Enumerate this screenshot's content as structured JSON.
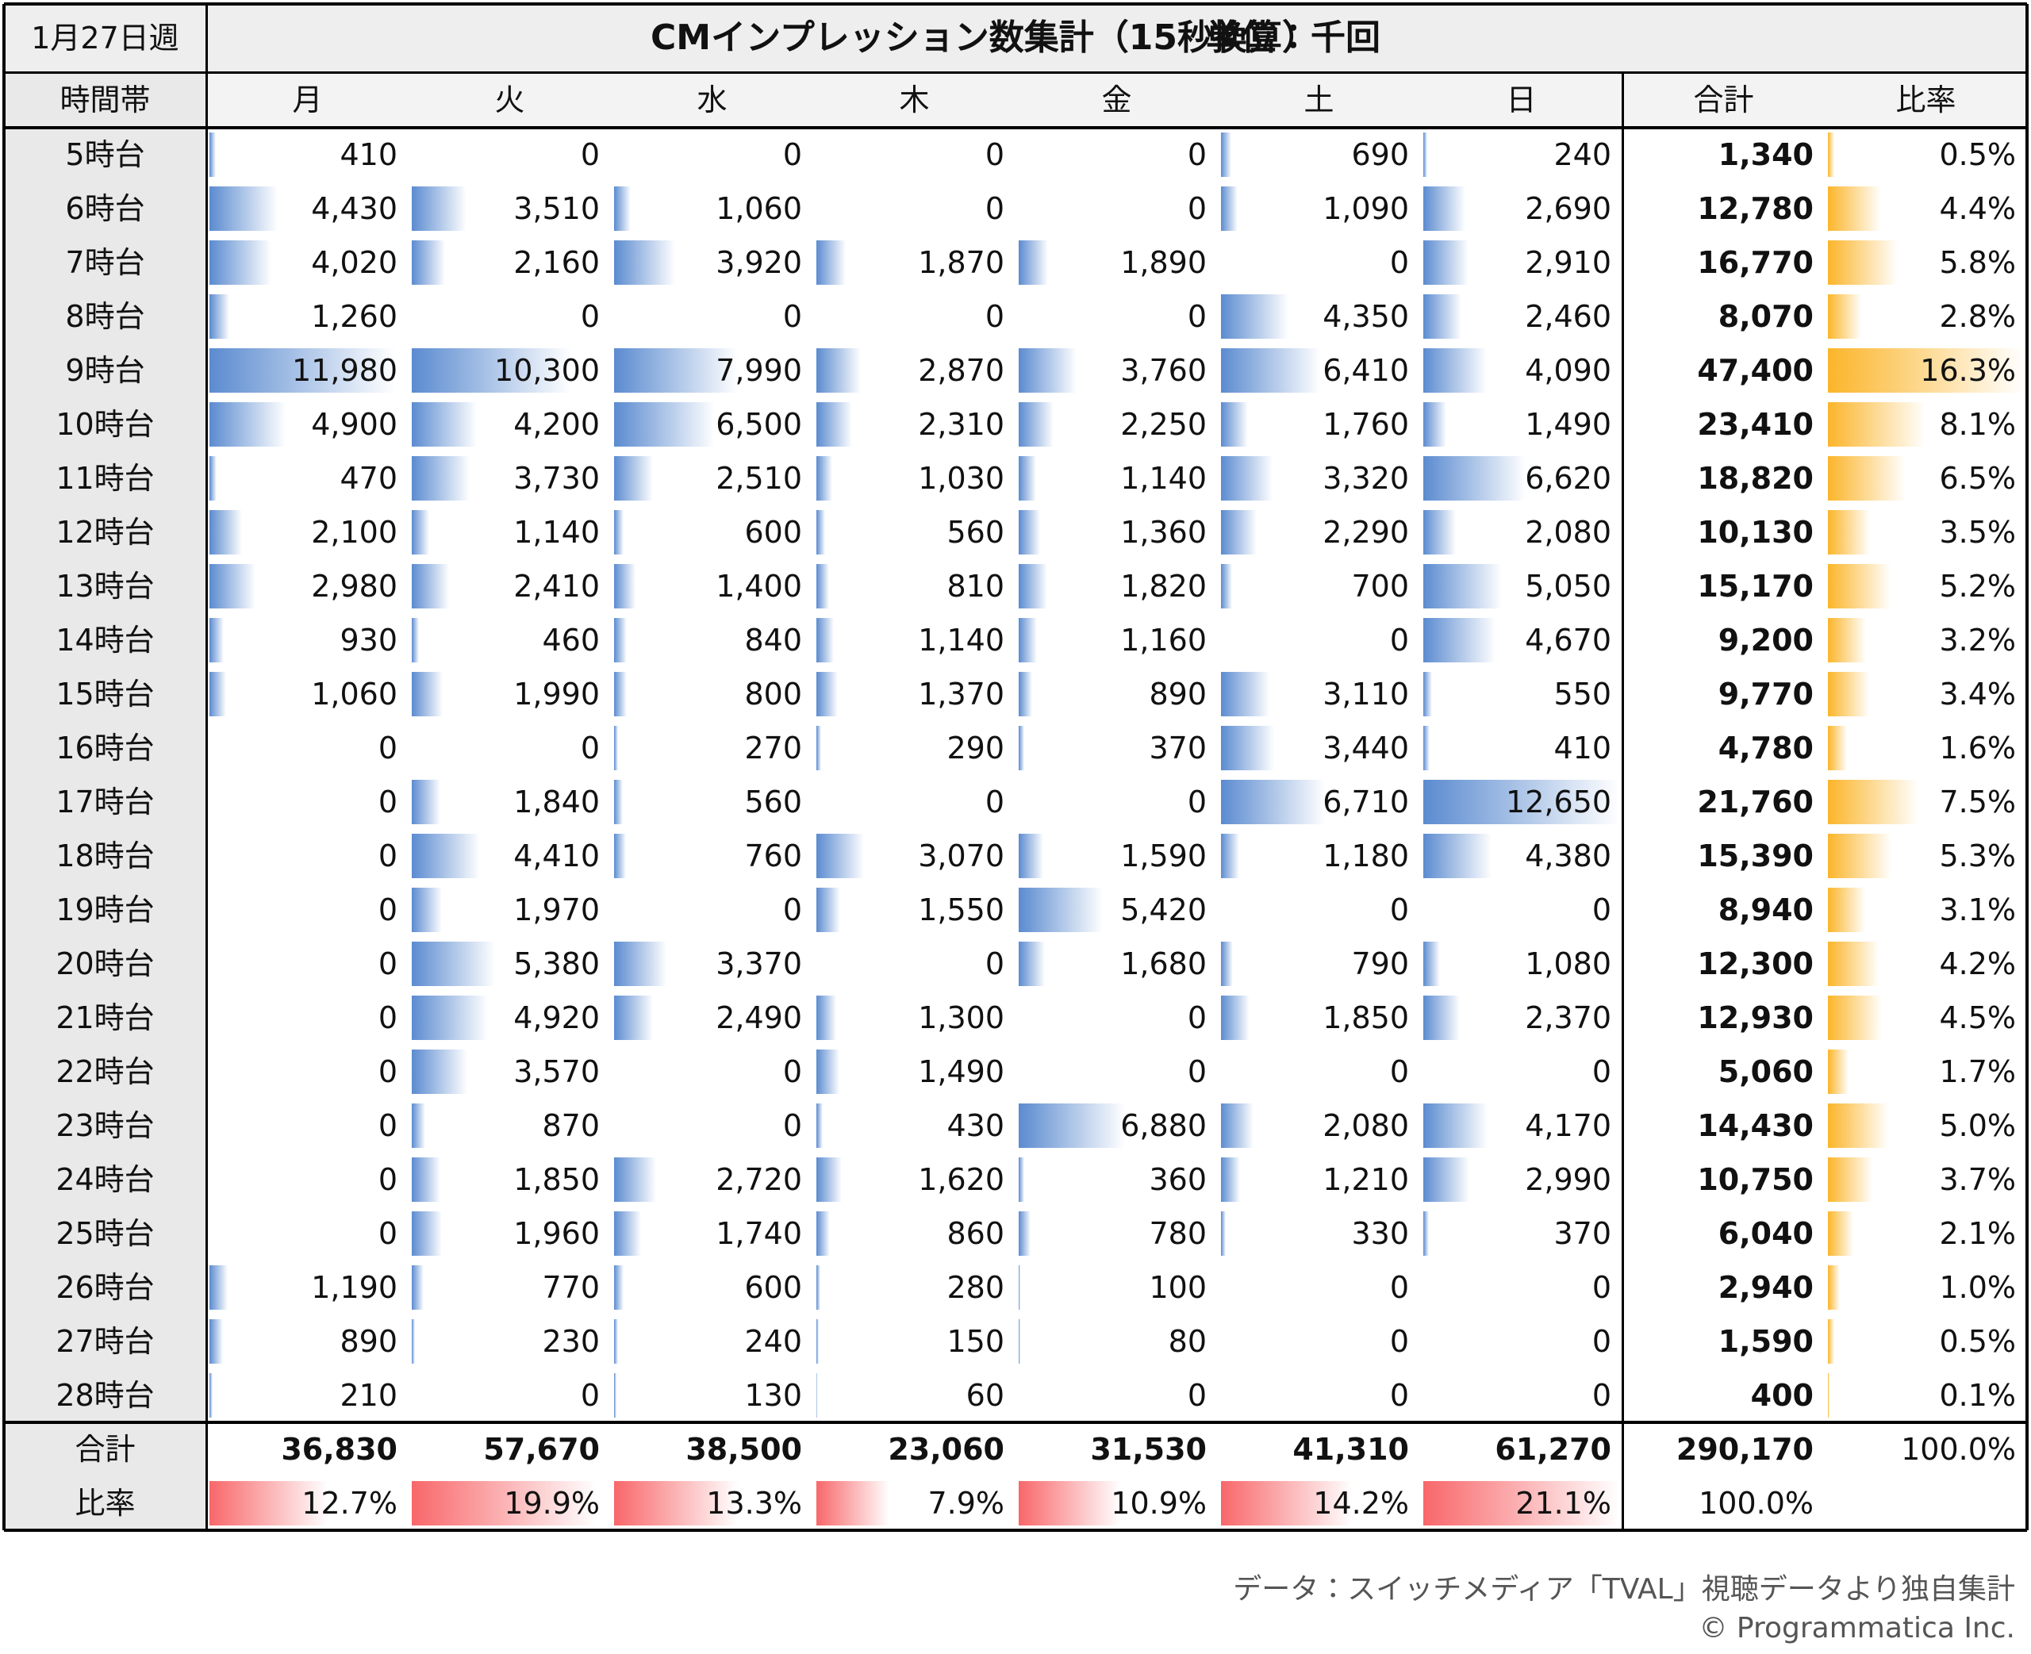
{
  "header": {
    "week": "1月27日週",
    "title": "CMインプレッション数集計（15秒換算）",
    "unit": "単位：千回"
  },
  "columns": [
    "時間帯",
    "月",
    "火",
    "水",
    "木",
    "金",
    "土",
    "日",
    "合計",
    "比率"
  ],
  "rows": [
    {
      "label": "5時台",
      "values": [
        410,
        0,
        0,
        0,
        0,
        690,
        240
      ],
      "value_labels": [
        "410",
        "0",
        "0",
        "0",
        "0",
        "690",
        "240"
      ],
      "total": 1340,
      "total_label": "1,340",
      "ratio": 0.5,
      "ratio_label": "0.5%"
    },
    {
      "label": "6時台",
      "values": [
        4430,
        3510,
        1060,
        0,
        0,
        1090,
        2690
      ],
      "value_labels": [
        "4,430",
        "3,510",
        "1,060",
        "0",
        "0",
        "1,090",
        "2,690"
      ],
      "total": 12780,
      "total_label": "12,780",
      "ratio": 4.4,
      "ratio_label": "4.4%"
    },
    {
      "label": "7時台",
      "values": [
        4020,
        2160,
        3920,
        1870,
        1890,
        0,
        2910
      ],
      "value_labels": [
        "4,020",
        "2,160",
        "3,920",
        "1,870",
        "1,890",
        "0",
        "2,910"
      ],
      "total": 16770,
      "total_label": "16,770",
      "ratio": 5.8,
      "ratio_label": "5.8%"
    },
    {
      "label": "8時台",
      "values": [
        1260,
        0,
        0,
        0,
        0,
        4350,
        2460
      ],
      "value_labels": [
        "1,260",
        "0",
        "0",
        "0",
        "0",
        "4,350",
        "2,460"
      ],
      "total": 8070,
      "total_label": "8,070",
      "ratio": 2.8,
      "ratio_label": "2.8%"
    },
    {
      "label": "9時台",
      "values": [
        11980,
        10300,
        7990,
        2870,
        3760,
        6410,
        4090
      ],
      "value_labels": [
        "11,980",
        "10,300",
        "7,990",
        "2,870",
        "3,760",
        "6,410",
        "4,090"
      ],
      "total": 47400,
      "total_label": "47,400",
      "ratio": 16.3,
      "ratio_label": "16.3%"
    },
    {
      "label": "10時台",
      "values": [
        4900,
        4200,
        6500,
        2310,
        2250,
        1760,
        1490
      ],
      "value_labels": [
        "4,900",
        "4,200",
        "6,500",
        "2,310",
        "2,250",
        "1,760",
        "1,490"
      ],
      "total": 23410,
      "total_label": "23,410",
      "ratio": 8.1,
      "ratio_label": "8.1%"
    },
    {
      "label": "11時台",
      "values": [
        470,
        3730,
        2510,
        1030,
        1140,
        3320,
        6620
      ],
      "value_labels": [
        "470",
        "3,730",
        "2,510",
        "1,030",
        "1,140",
        "3,320",
        "6,620"
      ],
      "total": 18820,
      "total_label": "18,820",
      "ratio": 6.5,
      "ratio_label": "6.5%"
    },
    {
      "label": "12時台",
      "values": [
        2100,
        1140,
        600,
        560,
        1360,
        2290,
        2080
      ],
      "value_labels": [
        "2,100",
        "1,140",
        "600",
        "560",
        "1,360",
        "2,290",
        "2,080"
      ],
      "total": 10130,
      "total_label": "10,130",
      "ratio": 3.5,
      "ratio_label": "3.5%"
    },
    {
      "label": "13時台",
      "values": [
        2980,
        2410,
        1400,
        810,
        1820,
        700,
        5050
      ],
      "value_labels": [
        "2,980",
        "2,410",
        "1,400",
        "810",
        "1,820",
        "700",
        "5,050"
      ],
      "total": 15170,
      "total_label": "15,170",
      "ratio": 5.2,
      "ratio_label": "5.2%"
    },
    {
      "label": "14時台",
      "values": [
        930,
        460,
        840,
        1140,
        1160,
        0,
        4670
      ],
      "value_labels": [
        "930",
        "460",
        "840",
        "1,140",
        "1,160",
        "0",
        "4,670"
      ],
      "total": 9200,
      "total_label": "9,200",
      "ratio": 3.2,
      "ratio_label": "3.2%"
    },
    {
      "label": "15時台",
      "values": [
        1060,
        1990,
        800,
        1370,
        890,
        3110,
        550
      ],
      "value_labels": [
        "1,060",
        "1,990",
        "800",
        "1,370",
        "890",
        "3,110",
        "550"
      ],
      "total": 9770,
      "total_label": "9,770",
      "ratio": 3.4,
      "ratio_label": "3.4%"
    },
    {
      "label": "16時台",
      "values": [
        0,
        0,
        270,
        290,
        370,
        3440,
        410
      ],
      "value_labels": [
        "0",
        "0",
        "270",
        "290",
        "370",
        "3,440",
        "410"
      ],
      "total": 4780,
      "total_label": "4,780",
      "ratio": 1.6,
      "ratio_label": "1.6%"
    },
    {
      "label": "17時台",
      "values": [
        0,
        1840,
        560,
        0,
        0,
        6710,
        12650
      ],
      "value_labels": [
        "0",
        "1,840",
        "560",
        "0",
        "0",
        "6,710",
        "12,650"
      ],
      "total": 21760,
      "total_label": "21,760",
      "ratio": 7.5,
      "ratio_label": "7.5%"
    },
    {
      "label": "18時台",
      "values": [
        0,
        4410,
        760,
        3070,
        1590,
        1180,
        4380
      ],
      "value_labels": [
        "0",
        "4,410",
        "760",
        "3,070",
        "1,590",
        "1,180",
        "4,380"
      ],
      "total": 15390,
      "total_label": "15,390",
      "ratio": 5.3,
      "ratio_label": "5.3%"
    },
    {
      "label": "19時台",
      "values": [
        0,
        1970,
        0,
        1550,
        5420,
        0,
        0
      ],
      "value_labels": [
        "0",
        "1,970",
        "0",
        "1,550",
        "5,420",
        "0",
        "0"
      ],
      "total": 8940,
      "total_label": "8,940",
      "ratio": 3.1,
      "ratio_label": "3.1%"
    },
    {
      "label": "20時台",
      "values": [
        0,
        5380,
        3370,
        0,
        1680,
        790,
        1080
      ],
      "value_labels": [
        "0",
        "5,380",
        "3,370",
        "0",
        "1,680",
        "790",
        "1,080"
      ],
      "total": 12300,
      "total_label": "12,300",
      "ratio": 4.2,
      "ratio_label": "4.2%"
    },
    {
      "label": "21時台",
      "values": [
        0,
        4920,
        2490,
        1300,
        0,
        1850,
        2370
      ],
      "value_labels": [
        "0",
        "4,920",
        "2,490",
        "1,300",
        "0",
        "1,850",
        "2,370"
      ],
      "total": 12930,
      "total_label": "12,930",
      "ratio": 4.5,
      "ratio_label": "4.5%"
    },
    {
      "label": "22時台",
      "values": [
        0,
        3570,
        0,
        1490,
        0,
        0,
        0
      ],
      "value_labels": [
        "0",
        "3,570",
        "0",
        "1,490",
        "0",
        "0",
        "0"
      ],
      "total": 5060,
      "total_label": "5,060",
      "ratio": 1.7,
      "ratio_label": "1.7%"
    },
    {
      "label": "23時台",
      "values": [
        0,
        870,
        0,
        430,
        6880,
        2080,
        4170
      ],
      "value_labels": [
        "0",
        "870",
        "0",
        "430",
        "6,880",
        "2,080",
        "4,170"
      ],
      "total": 14430,
      "total_label": "14,430",
      "ratio": 5.0,
      "ratio_label": "5.0%"
    },
    {
      "label": "24時台",
      "values": [
        0,
        1850,
        2720,
        1620,
        360,
        1210,
        2990
      ],
      "value_labels": [
        "0",
        "1,850",
        "2,720",
        "1,620",
        "360",
        "1,210",
        "2,990"
      ],
      "total": 10750,
      "total_label": "10,750",
      "ratio": 3.7,
      "ratio_label": "3.7%"
    },
    {
      "label": "25時台",
      "values": [
        0,
        1960,
        1740,
        860,
        780,
        330,
        370
      ],
      "value_labels": [
        "0",
        "1,960",
        "1,740",
        "860",
        "780",
        "330",
        "370"
      ],
      "total": 6040,
      "total_label": "6,040",
      "ratio": 2.1,
      "ratio_label": "2.1%"
    },
    {
      "label": "26時台",
      "values": [
        1190,
        770,
        600,
        280,
        100,
        0,
        0
      ],
      "value_labels": [
        "1,190",
        "770",
        "600",
        "280",
        "100",
        "0",
        "0"
      ],
      "total": 2940,
      "total_label": "2,940",
      "ratio": 1.0,
      "ratio_label": "1.0%"
    },
    {
      "label": "27時台",
      "values": [
        890,
        230,
        240,
        150,
        80,
        0,
        0
      ],
      "value_labels": [
        "890",
        "230",
        "240",
        "150",
        "80",
        "0",
        "0"
      ],
      "total": 1590,
      "total_label": "1,590",
      "ratio": 0.5,
      "ratio_label": "0.5%"
    },
    {
      "label": "28時台",
      "values": [
        210,
        0,
        130,
        60,
        0,
        0,
        0
      ],
      "value_labels": [
        "210",
        "0",
        "130",
        "60",
        "0",
        "0",
        "0"
      ],
      "total": 400,
      "total_label": "400",
      "ratio": 0.1,
      "ratio_label": "0.1%"
    }
  ],
  "footer": {
    "total_label": "合計",
    "totals": [
      36830,
      57670,
      38500,
      23060,
      31530,
      41310,
      61270
    ],
    "totals_labels": [
      "36,830",
      "57,670",
      "38,500",
      "23,060",
      "31,530",
      "41,310",
      "61,270"
    ],
    "grand_total": 290170,
    "grand_total_label": "290,170",
    "grand_total_ratio_label": "100.0%",
    "ratio_label": "比率",
    "ratios": [
      12.7,
      19.9,
      13.3,
      7.9,
      10.9,
      14.2,
      21.1
    ],
    "ratios_labels": [
      "12.7%",
      "19.9%",
      "13.3%",
      "7.9%",
      "10.9%",
      "14.2%",
      "21.1%"
    ],
    "ratios_total_label": "100.0%"
  },
  "notes": [
    "データ：スイッチメディア「TVAL」視聴データより独自集計",
    "© Programmatica Inc."
  ]
}
